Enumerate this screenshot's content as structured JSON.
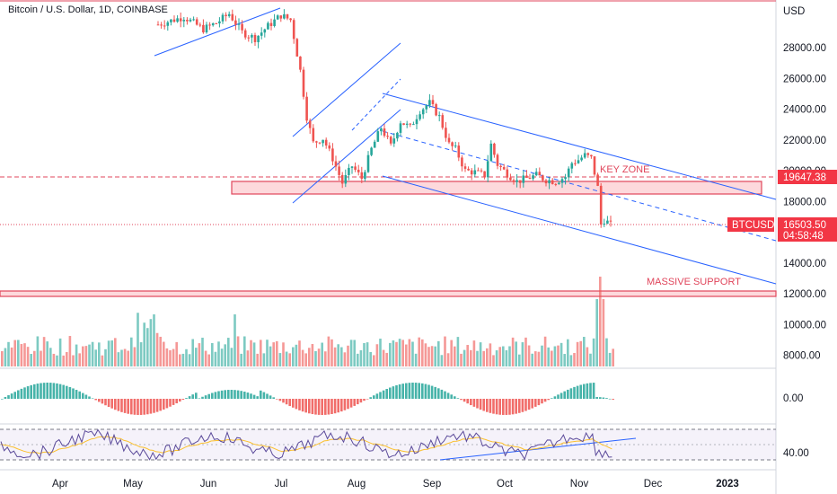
{
  "chart_data": {
    "type": "candlestick",
    "title": "Bitcoin / U.S. Dollar, 1D, COINBASE",
    "currency": "USD",
    "x_ticks": [
      "Apr",
      "May",
      "Jun",
      "Jul",
      "Aug",
      "Sep",
      "Oct",
      "Nov",
      "Dec",
      "2023"
    ],
    "price_ticks": [
      "28000.00",
      "26000.00",
      "24000.00",
      "22000.00",
      "20000.00",
      "18000.00",
      "14000.00",
      "12000.00",
      "10000.00",
      "8000.00"
    ],
    "price_range": [
      7400,
      30800
    ],
    "last_price": {
      "symbol": "BTCUSD",
      "value": "16503.50",
      "countdown": "04:58:48"
    },
    "line_price": {
      "value": "19647.38"
    },
    "key_zone": {
      "label": "KEY ZONE",
      "low": 18400,
      "high": 19100
    },
    "massive_support": {
      "label": "MASSIVE SUPPORT",
      "low": 11800,
      "high": 12150
    },
    "macd": {
      "zero_label": "0.00"
    },
    "rsi": {
      "tick_label": "40.00"
    },
    "colors": {
      "up": "#26a69a",
      "down": "#ef5350",
      "channel": "#2962ff",
      "zone": "#f7525f",
      "tag_red": "#f23645",
      "rsi_line": "#7e57c2",
      "rsi_ma": "#fbc02d"
    }
  }
}
